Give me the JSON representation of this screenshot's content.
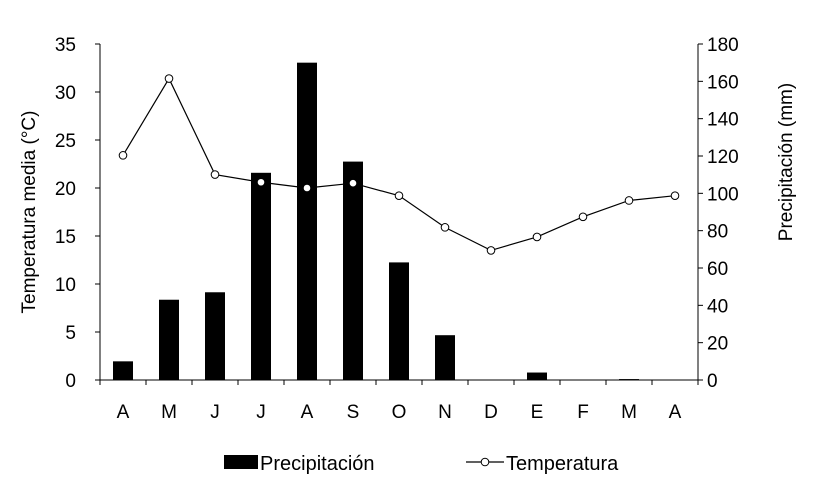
{
  "chart_data": {
    "type": "bar",
    "categories": [
      "A",
      "M",
      "J",
      "J",
      "A",
      "S",
      "O",
      "N",
      "D",
      "E",
      "F",
      "M",
      "A"
    ],
    "title": "",
    "xlabel": "",
    "series": [
      {
        "name": "Precipitación",
        "type": "bar",
        "axis": "right",
        "color": "#000000",
        "values": [
          10,
          43,
          47,
          111,
          170,
          117,
          63,
          24,
          0,
          4,
          0,
          0.5,
          0
        ]
      },
      {
        "name": "Temperatura",
        "type": "line",
        "axis": "left",
        "color": "#000000",
        "marker": "open-circle",
        "values": [
          23.4,
          31.4,
          21.4,
          20.6,
          20.0,
          20.5,
          19.2,
          15.9,
          13.5,
          14.9,
          17.0,
          18.7,
          19.2
        ]
      }
    ],
    "y_left": {
      "label": "Temperatura media  (°C)",
      "lim": [
        0,
        35
      ],
      "ticks": [
        0,
        5,
        10,
        15,
        20,
        25,
        30,
        35
      ]
    },
    "y_right": {
      "label": "Precipitación  (mm)",
      "lim": [
        0,
        180
      ],
      "ticks": [
        0,
        20,
        40,
        60,
        80,
        100,
        120,
        140,
        160,
        180
      ]
    },
    "grid": false,
    "legend": "bottom-center"
  }
}
